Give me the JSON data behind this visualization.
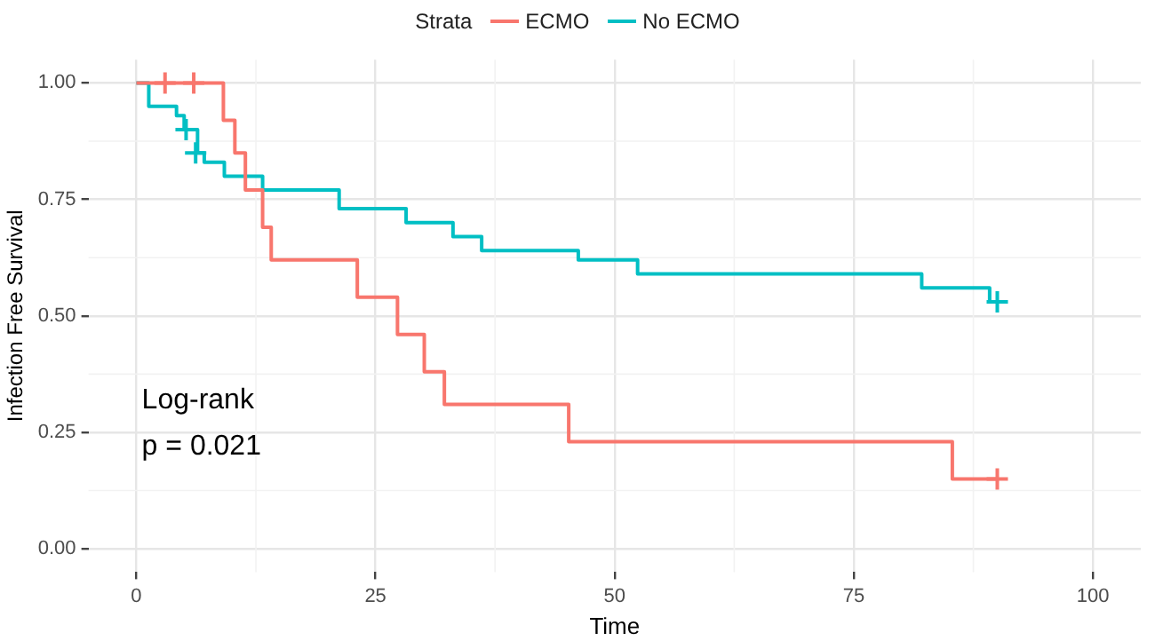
{
  "chart_data": {
    "type": "step",
    "xlabel": "Time",
    "ylabel": "Infection Free Survival",
    "legend_title": "Strata",
    "legend": "top",
    "xlim": [
      -5,
      105
    ],
    "xticks": [
      0,
      25,
      50,
      75,
      100
    ],
    "ylim": [
      -0.05,
      1.05
    ],
    "yticks": [
      {
        "value": 0,
        "label": "0.00"
      },
      {
        "value": 0.25,
        "label": "0.25"
      },
      {
        "value": 0.5,
        "label": "0.50"
      },
      {
        "value": 0.75,
        "label": "0.75"
      },
      {
        "value": 1,
        "label": "1.00"
      }
    ],
    "grid": true,
    "annotations": [
      "Log-rank",
      "p = 0.021"
    ],
    "series": [
      {
        "name": "ECMO",
        "color": "#f8766d",
        "x": [
          0,
          9.1,
          10.3,
          11.4,
          13.2,
          14.1,
          23.1,
          27.3,
          30.1,
          32.2,
          45.2,
          85.3,
          90
        ],
        "values": [
          1,
          0.92,
          0.85,
          0.77,
          0.69,
          0.62,
          0.54,
          0.46,
          0.38,
          0.31,
          0.23,
          0.15,
          0.15
        ]
      },
      {
        "name": "No ECMO",
        "color": "#00bfc4",
        "x": [
          0,
          1.3,
          4.2,
          5.0,
          6.4,
          7.1,
          9.2,
          13.2,
          21.2,
          28.2,
          33.1,
          36.1,
          46.2,
          52.4,
          82.1,
          89.2,
          90
        ],
        "values": [
          1,
          0.95,
          0.93,
          0.9,
          0.85,
          0.83,
          0.8,
          0.77,
          0.73,
          0.7,
          0.67,
          0.64,
          0.62,
          0.59,
          0.56,
          0.53,
          0.53
        ]
      },
      {
        "color": "#f8766d",
        "type": "scatter",
        "marker": "cross",
        "x": [
          3,
          6,
          90
        ],
        "values": [
          1,
          1,
          0.15
        ]
      },
      {
        "color": "#00bfc4",
        "type": "scatter",
        "marker": "cross",
        "x": [
          5.2,
          6.2,
          90
        ],
        "values": [
          0.9,
          0.85,
          0.53
        ]
      }
    ]
  }
}
